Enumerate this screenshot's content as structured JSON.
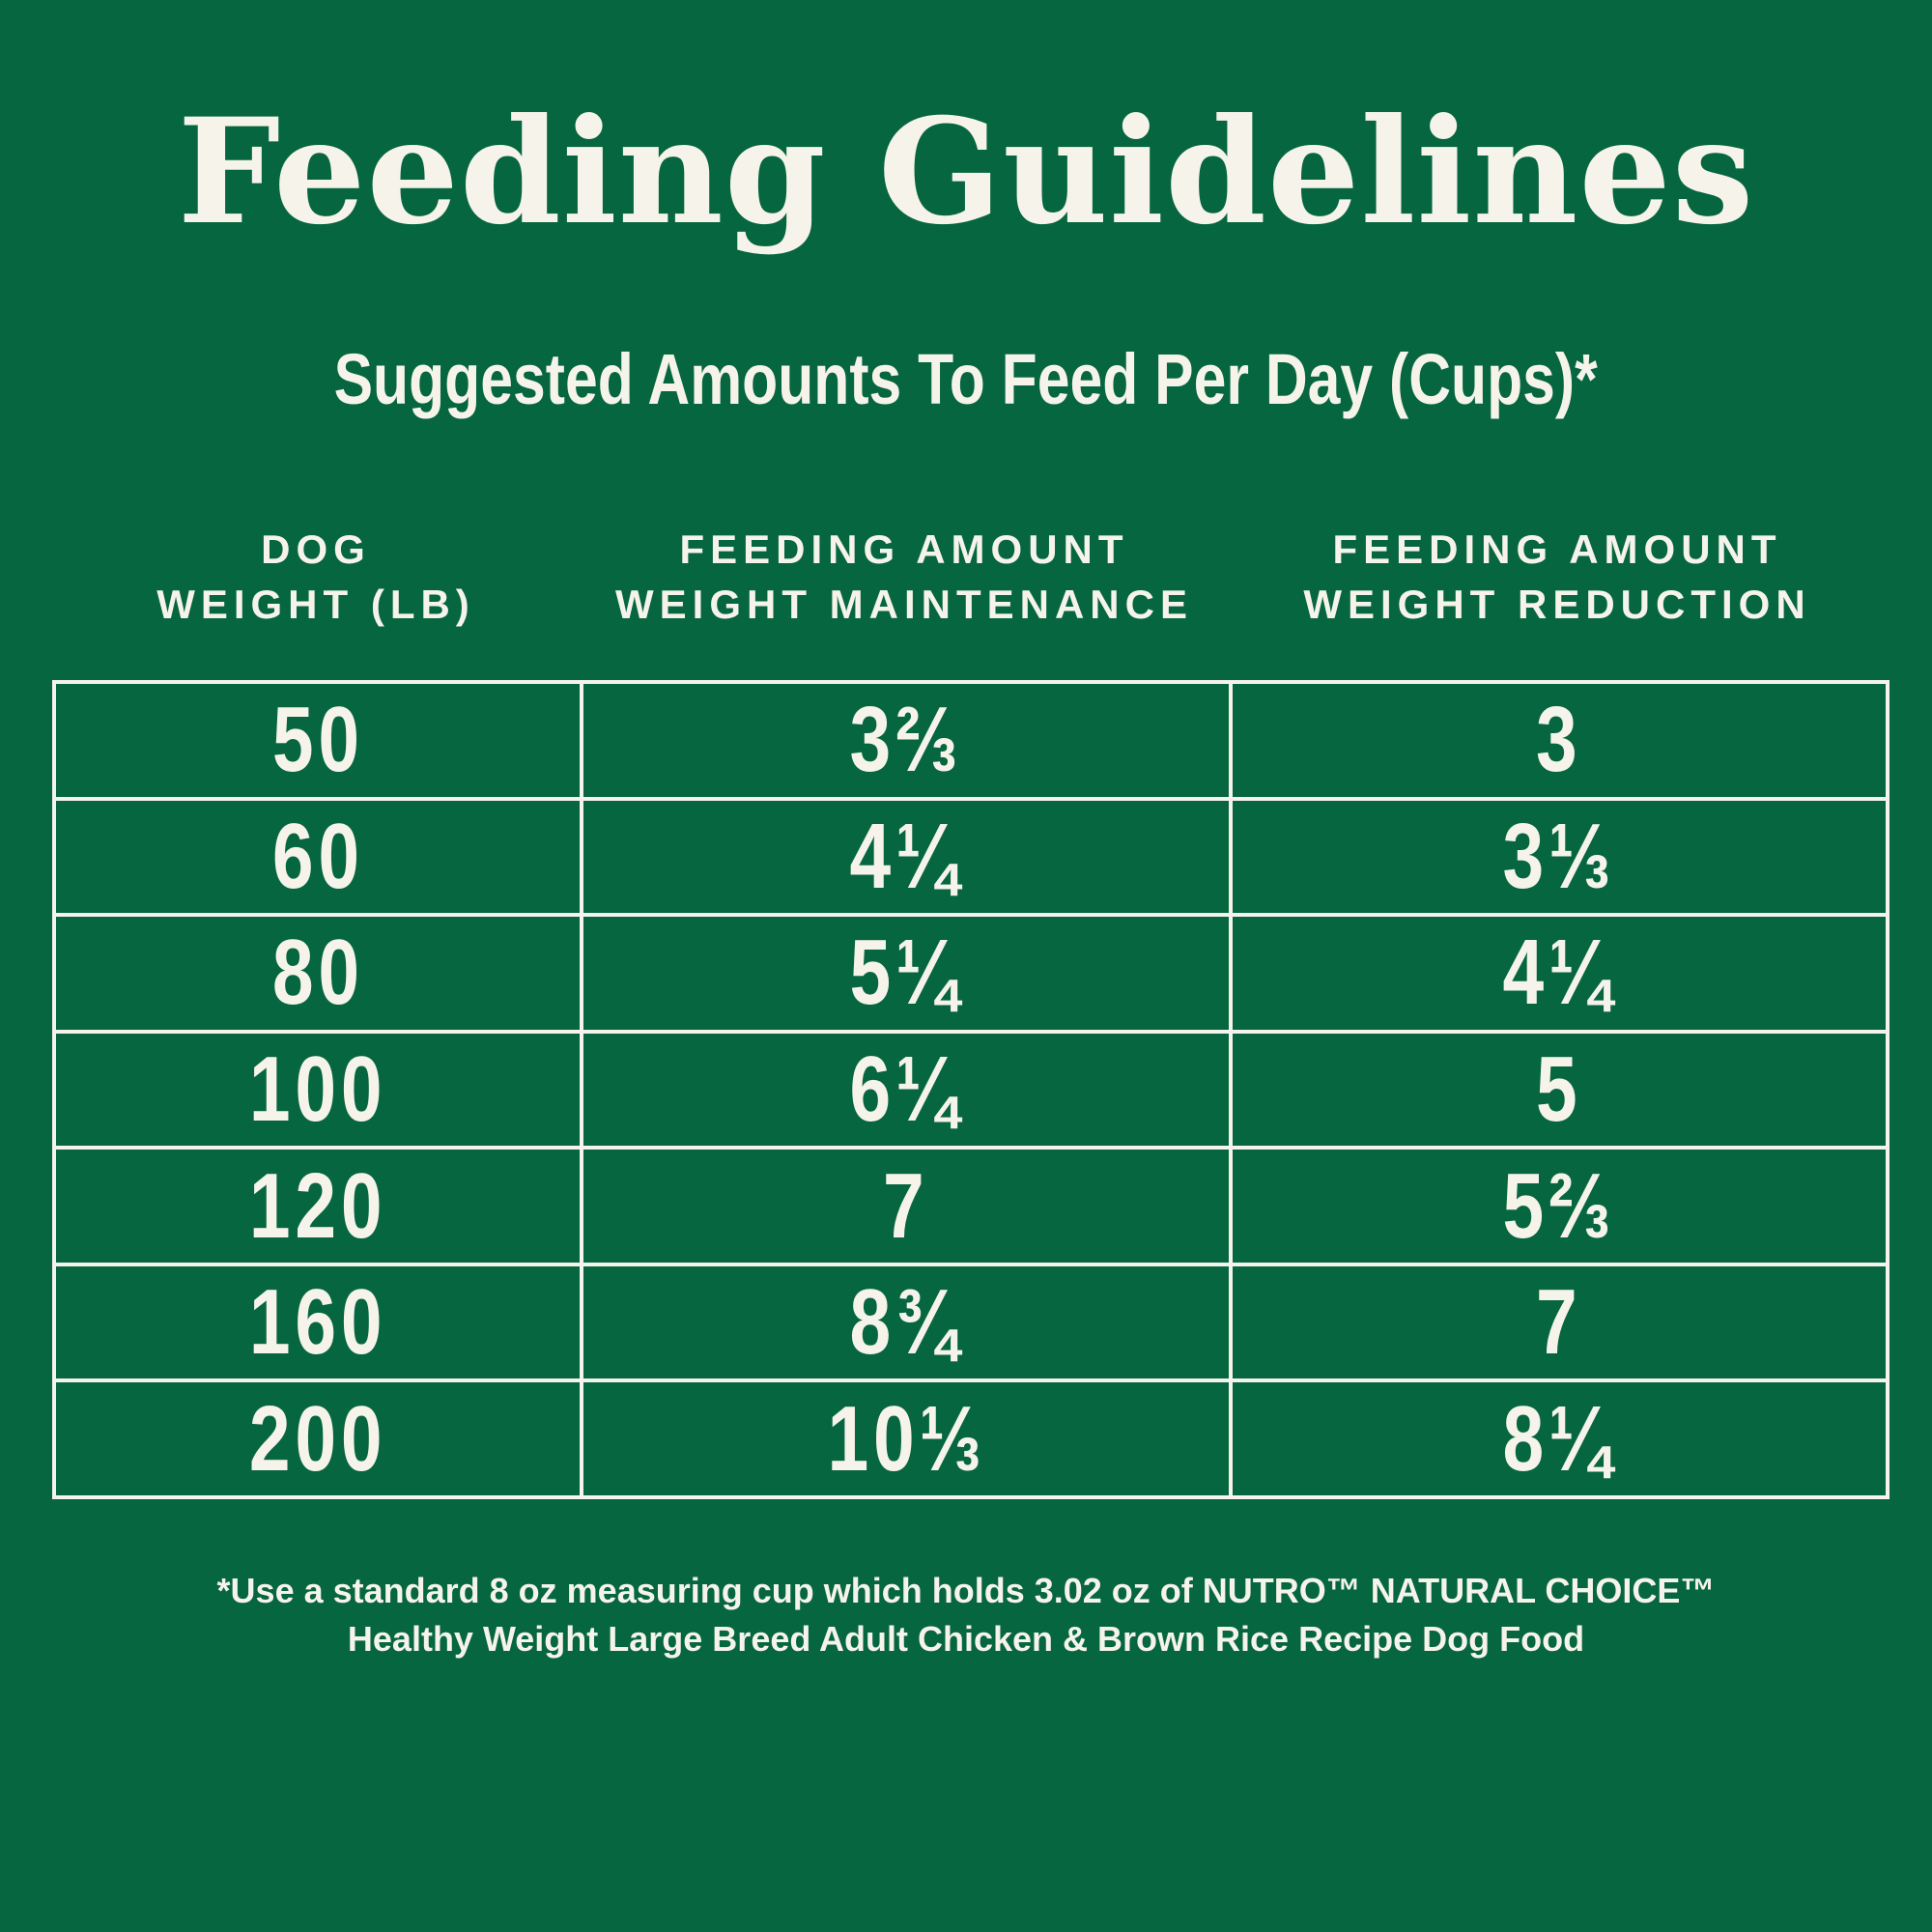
{
  "header": {
    "title": "Feeding Guidelines",
    "subtitle": "Suggested Amounts To Feed Per Day (Cups)*"
  },
  "table": {
    "headers": [
      [
        "DOG",
        "WEIGHT (LB)"
      ],
      [
        "FEEDING AMOUNT",
        "WEIGHT MAINTENANCE"
      ],
      [
        "FEEDING AMOUNT",
        "WEIGHT REDUCTION"
      ]
    ],
    "rows": [
      [
        "50",
        "3⅔",
        "3"
      ],
      [
        "60",
        "4¼",
        "3⅓"
      ],
      [
        "80",
        "5¼",
        "4¼"
      ],
      [
        "100",
        "6¼",
        "5"
      ],
      [
        "120",
        "7",
        "5⅔"
      ],
      [
        "160",
        "8¾",
        "7"
      ],
      [
        "200",
        "10⅓",
        "8¼"
      ]
    ]
  },
  "footnote": [
    "*Use a standard 8 oz measuring cup which holds 3.02 oz of NUTRO™ NATURAL CHOICE™",
    "Healthy Weight Large Breed Adult Chicken & Brown Rice Recipe Dog Food"
  ]
}
